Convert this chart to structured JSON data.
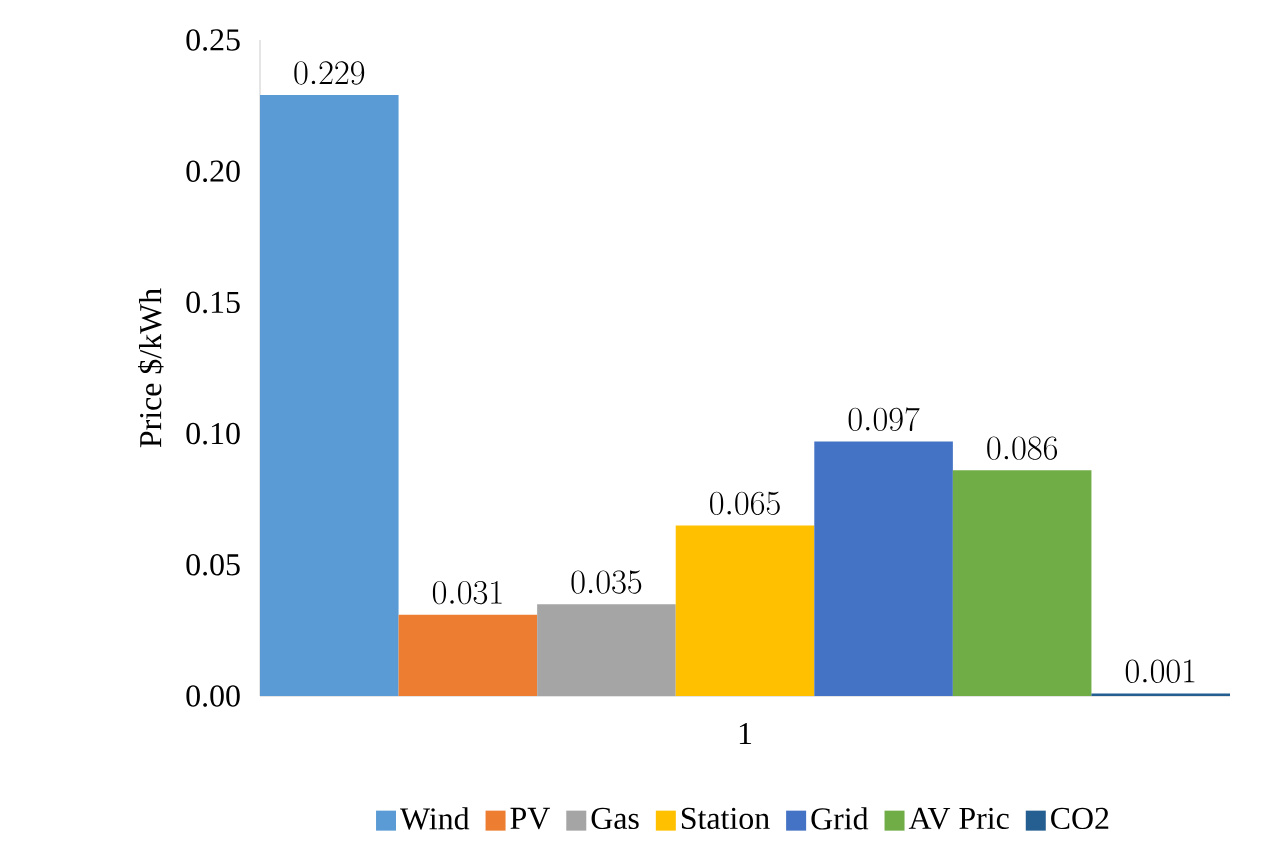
{
  "chart_data": {
    "type": "bar",
    "ylabel": "Price $/kWh",
    "categories": [
      "1"
    ],
    "series": [
      {
        "name": "Wind",
        "color": "#5b9bd5",
        "values": [
          0.229
        ]
      },
      {
        "name": "PV",
        "color": "#ed7d31",
        "values": [
          0.031
        ]
      },
      {
        "name": "Gas",
        "color": "#a5a5a5",
        "values": [
          0.035
        ]
      },
      {
        "name": "Station",
        "color": "#ffc000",
        "values": [
          0.065
        ]
      },
      {
        "name": "Grid",
        "color": "#4472c4",
        "values": [
          0.097
        ]
      },
      {
        "name": "AV Pric",
        "color": "#70ad47",
        "values": [
          0.086
        ]
      },
      {
        "name": "CO2",
        "color": "#255e91",
        "values": [
          0.001
        ]
      }
    ],
    "ylim": [
      0,
      0.25
    ],
    "yticks": [
      {
        "value": 0,
        "label": "0.00"
      },
      {
        "value": 0.05,
        "label": "0.05"
      },
      {
        "value": 0.1,
        "label": "0.10"
      },
      {
        "value": 0.15,
        "label": "0.15"
      },
      {
        "value": 0.2,
        "label": "0.20"
      },
      {
        "value": 0.25,
        "label": "0.25"
      }
    ],
    "data_labels": true,
    "legend": "bottom",
    "grid": false
  }
}
